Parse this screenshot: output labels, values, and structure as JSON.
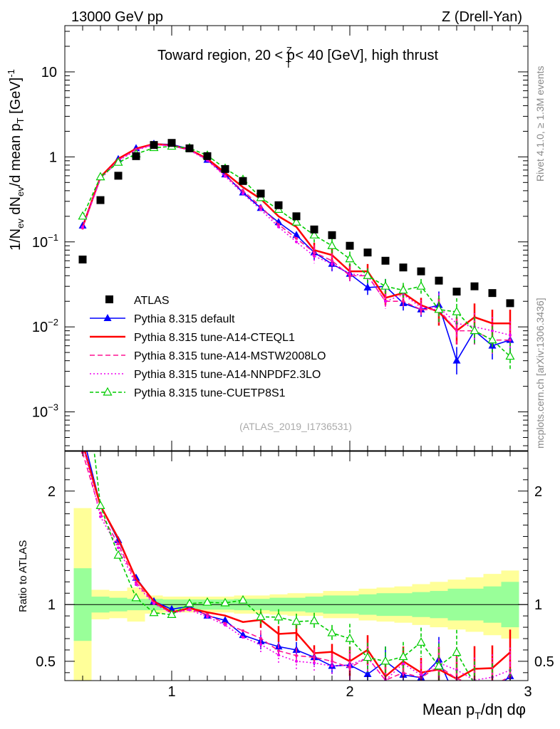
{
  "header": {
    "left": "13000 GeV pp",
    "right": "Z (Drell-Yan)"
  },
  "side_text": {
    "rivet": "Rivet 4.1.0, ≥ 1.3M events",
    "mcplots": "mcplots.cern.ch [arXiv:1306.3436]"
  },
  "chart_data": {
    "type": "line",
    "title": "Toward region, 20 < pT^Z < 40 [GeV], high thrust",
    "title_parts": {
      "pre": "Toward region, 20 < p",
      "sup": "Z",
      "sub": "T",
      "post": " < 40 [GeV], high thrust"
    },
    "ylabel": "1/N_ev dN_ev/d mean p_T [GeV]^-1",
    "ylabel_parts": {
      "a": "1/N",
      "a_sub": "ev",
      "b": " dN",
      "b_sub": "ev",
      "c": "/d mean p",
      "c_sub": "T",
      "d": " [GeV]",
      "d_sup": "-1"
    },
    "xlabel": "Mean p_T/dη dφ",
    "xlabel_parts": {
      "a": "Mean p",
      "a_sub": "T",
      "b": "/dη dφ"
    },
    "ratio_ylabel": "Ratio to ATLAS",
    "reference_tag": "(ATLAS_2019_I1736531)",
    "xlim": [
      0.4,
      3.0
    ],
    "ylim": [
      0.00035,
      35
    ],
    "yscale": "log",
    "ratio_ylim": [
      0.33,
      2.35
    ],
    "x_ticks": [
      1,
      2,
      3
    ],
    "x_tick_labels": [
      "1",
      "2",
      "3"
    ],
    "y_ticks": [
      0.001,
      0.01,
      0.1,
      1,
      10
    ],
    "y_tick_labels": [
      {
        "base": "10",
        "exp": "−3"
      },
      {
        "base": "10",
        "exp": "−2"
      },
      {
        "base": "10",
        "exp": "−1"
      },
      {
        "base": "1",
        "exp": ""
      },
      {
        "base": "10",
        "exp": ""
      }
    ],
    "ratio_ticks": [
      0.5,
      1,
      2
    ],
    "ratio_tick_labels": [
      "0.5",
      "1",
      "2"
    ],
    "x": [
      0.5,
      0.6,
      0.7,
      0.8,
      0.9,
      1.0,
      1.1,
      1.2,
      1.3,
      1.4,
      1.5,
      1.6,
      1.7,
      1.8,
      1.9,
      2.0,
      2.1,
      2.2,
      2.3,
      2.4,
      2.5,
      2.6,
      2.7,
      2.8,
      2.9
    ],
    "atlas": [
      0.062,
      0.31,
      0.6,
      1.02,
      1.38,
      1.46,
      1.26,
      1.02,
      0.72,
      0.52,
      0.37,
      0.27,
      0.2,
      0.14,
      0.12,
      0.09,
      0.075,
      0.06,
      0.05,
      0.045,
      0.035,
      0.026,
      0.03,
      0.025,
      0.019
    ],
    "band_green": [
      0.32,
      0.07,
      0.06,
      0.05,
      0.05,
      0.045,
      0.045,
      0.045,
      0.045,
      0.05,
      0.05,
      0.06,
      0.06,
      0.07,
      0.08,
      0.08,
      0.09,
      0.1,
      0.1,
      0.11,
      0.12,
      0.14,
      0.14,
      0.16,
      0.2
    ],
    "band_yellow": [
      0.85,
      0.13,
      0.12,
      0.15,
      0.08,
      0.07,
      0.07,
      0.07,
      0.07,
      0.08,
      0.08,
      0.09,
      0.1,
      0.1,
      0.12,
      0.12,
      0.14,
      0.15,
      0.16,
      0.18,
      0.2,
      0.22,
      0.24,
      0.27,
      0.3
    ],
    "series": [
      {
        "name": "Pythia 8.315 default",
        "color": "#0000ff",
        "dash": "",
        "marker": "triangle-filled",
        "values": [
          0.155,
          0.58,
          0.94,
          1.26,
          1.42,
          1.4,
          1.24,
          0.92,
          0.62,
          0.38,
          0.25,
          0.17,
          0.12,
          0.075,
          0.055,
          0.042,
          0.029,
          0.03,
          0.019,
          0.016,
          0.018,
          0.004,
          0.009,
          0.006,
          0.007
        ]
      },
      {
        "name": "Pythia 8.315 tune-A14-CTEQL1",
        "color": "#ff0000",
        "dash": "",
        "marker": "none",
        "values": [
          0.15,
          0.58,
          0.95,
          1.25,
          1.42,
          1.36,
          1.22,
          0.95,
          0.65,
          0.44,
          0.32,
          0.2,
          0.15,
          0.08,
          0.07,
          0.045,
          0.045,
          0.022,
          0.025,
          0.018,
          0.015,
          0.009,
          0.013,
          0.011,
          0.011
        ]
      },
      {
        "name": "Pythia 8.315 tune-A14-MSTW2008LO",
        "color": "#ff1493",
        "dash": "7,4",
        "marker": "dot",
        "values": [
          0.145,
          0.56,
          0.92,
          1.22,
          1.4,
          1.35,
          1.21,
          0.93,
          0.6,
          0.4,
          0.26,
          0.16,
          0.11,
          0.075,
          0.06,
          0.04,
          0.04,
          0.02,
          0.02,
          0.016,
          0.016,
          0.009,
          0.009,
          0.007,
          0.007
        ]
      },
      {
        "name": "Pythia 8.315 tune-A14-NNPDF2.3LO",
        "color": "#ee00ee",
        "dash": "2,3",
        "marker": "dot",
        "values": [
          0.15,
          0.55,
          0.9,
          1.2,
          1.39,
          1.35,
          1.2,
          0.91,
          0.59,
          0.37,
          0.24,
          0.15,
          0.1,
          0.068,
          0.055,
          0.042,
          0.04,
          0.02,
          0.024,
          0.017,
          0.017,
          0.011,
          0.01,
          0.009,
          0.008
        ]
      },
      {
        "name": "Pythia 8.315 tune-CUETP8S1",
        "color": "#00cc00",
        "dash": "5,3",
        "marker": "triangle-open",
        "values": [
          0.2,
          0.58,
          0.86,
          1.08,
          1.28,
          1.33,
          1.27,
          1.04,
          0.73,
          0.54,
          0.33,
          0.24,
          0.17,
          0.12,
          0.09,
          0.063,
          0.04,
          0.03,
          0.027,
          0.03,
          0.016,
          0.015,
          0.009,
          0.007,
          0.0045
        ]
      }
    ]
  }
}
